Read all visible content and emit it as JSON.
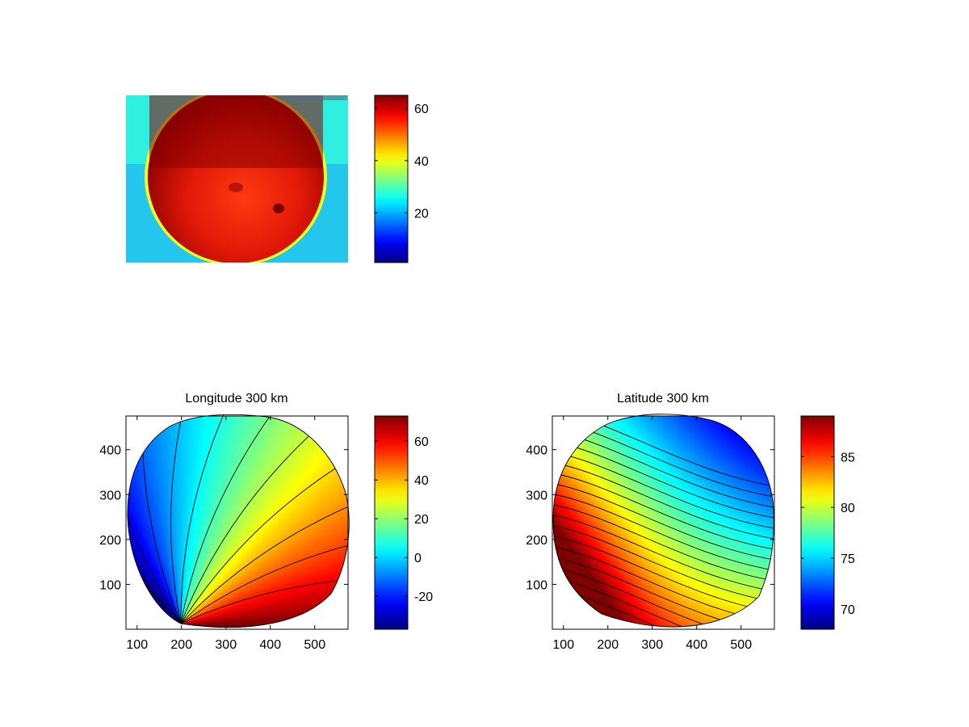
{
  "chart_data": [
    {
      "type": "heatmap",
      "title": "",
      "content": "raw camera image of a circular sky view",
      "colorbar": {
        "range": [
          1,
          65
        ],
        "ticks": [
          20,
          40,
          60
        ],
        "colormap": "jet"
      },
      "axes_visible": false
    },
    {
      "type": "contour",
      "title": "Longitude 300 km",
      "xlim": [
        75,
        575
      ],
      "ylim": [
        0,
        475
      ],
      "xticks": [
        100,
        200,
        300,
        400,
        500
      ],
      "yticks": [
        100,
        200,
        300,
        400
      ],
      "colorbar": {
        "range": [
          -37,
          73
        ],
        "ticks": [
          -20,
          0,
          20,
          40,
          60
        ],
        "colormap": "jet"
      },
      "levels": {
        "start": -35,
        "step": 10,
        "count": 11,
        "width_step": 5
      }
    },
    {
      "type": "contour",
      "title": "Latitude 300 km",
      "xlim": [
        75,
        575
      ],
      "ylim": [
        0,
        475
      ],
      "xticks": [
        100,
        200,
        300,
        400,
        500
      ],
      "yticks": [
        100,
        200,
        300,
        400
      ],
      "colorbar": {
        "range": [
          68,
          89
        ],
        "ticks": [
          70,
          75,
          80,
          85
        ],
        "colormap": "jet"
      },
      "levels": {
        "start": 69,
        "step": 1,
        "count": 20,
        "min_value": 68,
        "max_value": 89
      }
    }
  ]
}
